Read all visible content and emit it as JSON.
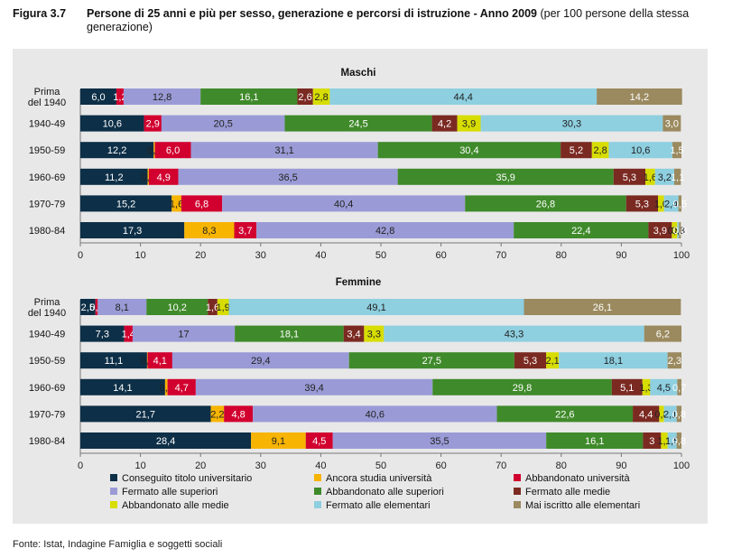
{
  "figure": {
    "label": "Figura 3.7",
    "title": "Persone di 25 anni e più per sesso, generazione e percorsi di istruzione - Anno 2009",
    "subtitle": "(per 100 persone della stessa generazione)"
  },
  "source": "Fonte: Istat, Indagine Famiglia e soggetti sociali",
  "chart_data": {
    "type": "bar",
    "orientation": "horizontal",
    "stacked": true,
    "xlim": [
      0,
      100
    ],
    "xticks": [
      0,
      10,
      20,
      30,
      40,
      50,
      60,
      70,
      80,
      90,
      100
    ],
    "legend_position": "bottom",
    "series": [
      {
        "name": "Conseguito titolo universitario",
        "color": "#0d2f47"
      },
      {
        "name": "Ancora studia università",
        "color": "#f7b400"
      },
      {
        "name": "Abbandonato università",
        "color": "#d1002f"
      },
      {
        "name": "Fermato alle superiori",
        "color": "#9a9bd6"
      },
      {
        "name": "Abbandonato alle superiori",
        "color": "#3f8a2a"
      },
      {
        "name": "Fermato alle medie",
        "color": "#7b2a22"
      },
      {
        "name": "Abbandonato alle medie",
        "color": "#d7dd00"
      },
      {
        "name": "Fermato alle elementari",
        "color": "#8ecfe0"
      },
      {
        "name": "Mai iscritto alle elementari",
        "color": "#9b8a5f"
      }
    ],
    "panels": [
      {
        "title": "Maschi",
        "categories": [
          "Prima del 1940",
          "1940-49",
          "1950-59",
          "1960-69",
          "1970-79",
          "1980-84"
        ],
        "values": [
          [
            6.0,
            0,
            1.2,
            12.8,
            16.1,
            2.6,
            2.8,
            44.4,
            14.2
          ],
          [
            10.6,
            0,
            2.9,
            20.5,
            24.5,
            4.2,
            3.9,
            30.3,
            3.0
          ],
          [
            12.2,
            0.2,
            6.0,
            31.1,
            30.4,
            5.2,
            2.8,
            10.6,
            1.5
          ],
          [
            11.2,
            0.2,
            4.9,
            36.5,
            35.9,
            5.3,
            1.6,
            3.2,
            1.1
          ],
          [
            15.2,
            1.6,
            6.8,
            40.4,
            26.8,
            5.3,
            1.0,
            2.4,
            0.5
          ],
          [
            17.3,
            8.3,
            3.7,
            42.8,
            22.4,
            3.9,
            0.9,
            0.3,
            0.3
          ]
        ],
        "labels": [
          [
            "6,0",
            "",
            "1,2",
            "12,8",
            "16,1",
            "2,6",
            "2,8",
            "44,4",
            "14,2"
          ],
          [
            "10,6",
            "",
            "2,9",
            "20,5",
            "24,5",
            "4,2",
            "3,9",
            "30,3",
            "3,0"
          ],
          [
            "12,2",
            "0,2",
            "6,0",
            "31,1",
            "30,4",
            "5,2",
            "2,8",
            "10,6",
            "1,5"
          ],
          [
            "11,2",
            "0,2",
            "4,9",
            "36,5",
            "35,9",
            "5,3",
            "1,6",
            "3,2",
            "1,1"
          ],
          [
            "15,2",
            "1,6",
            "6,8",
            "40,4",
            "26,8",
            "5,3",
            "1,0",
            "2,4",
            "0,5"
          ],
          [
            "17,3",
            "8,3",
            "3,7",
            "42,8",
            "22,4",
            "3,9",
            "0,9",
            "0,3",
            "0,3"
          ]
        ]
      },
      {
        "title": "Femmine",
        "categories": [
          "Prima del 1940",
          "1940-49",
          "1950-59",
          "1960-69",
          "1970-79",
          "1980-84"
        ],
        "values": [
          [
            2.5,
            0,
            0.4,
            8.1,
            10.2,
            1.6,
            1.9,
            49.1,
            26.1
          ],
          [
            7.3,
            0,
            1.4,
            17,
            18.1,
            3.4,
            3.3,
            43.3,
            6.2
          ],
          [
            11.1,
            0.1,
            4.1,
            29.4,
            27.5,
            5.3,
            2.1,
            18.1,
            2.3
          ],
          [
            14.1,
            0.4,
            4.7,
            39.4,
            29.8,
            5.1,
            1.3,
            4.5,
            0.7
          ],
          [
            21.7,
            2.2,
            4.8,
            40.6,
            22.6,
            4.4,
            0.8,
            2.1,
            0.8
          ],
          [
            28.4,
            9.1,
            4.5,
            35.5,
            16.1,
            3,
            1.1,
            1.5,
            0.8
          ]
        ],
        "labels": [
          [
            "2,5",
            "",
            "0,4",
            "8,1",
            "10,2",
            "1,6",
            "1,9",
            "49,1",
            "26,1"
          ],
          [
            "7,3",
            "",
            "1,4",
            "17",
            "18,1",
            "3,4",
            "3,3",
            "43,3",
            "6,2"
          ],
          [
            "11,1",
            "0,1",
            "4,1",
            "29,4",
            "27,5",
            "5,3",
            "2,1",
            "18,1",
            "2,3"
          ],
          [
            "14,1",
            "0,4",
            "4,7",
            "39,4",
            "29,8",
            "5,1",
            "1,3",
            "4,5",
            "0,7"
          ],
          [
            "21,7",
            "2,2",
            "4,8",
            "40,6",
            "22,6",
            "4,4",
            "0,8",
            "2,1",
            "0,8"
          ],
          [
            "28,4",
            "9,1",
            "4,5",
            "35,5",
            "16,1",
            "3",
            "1,1",
            "1,5",
            "0,8"
          ]
        ]
      }
    ]
  }
}
